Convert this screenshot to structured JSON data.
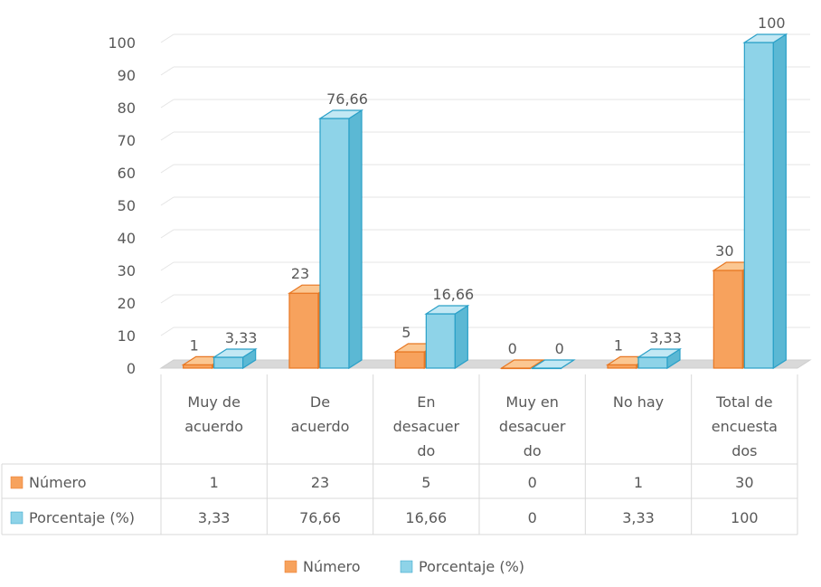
{
  "chart_data": {
    "type": "bar",
    "title": "",
    "categories": [
      [
        "Muy de",
        "acuerdo"
      ],
      [
        "De",
        "acuerdo"
      ],
      [
        "En",
        "desacuer",
        "do"
      ],
      [
        "Muy en",
        "desacuer",
        "do"
      ],
      [
        "No hay"
      ],
      [
        "Total de",
        "encuesta",
        "dos"
      ]
    ],
    "series": [
      {
        "name": "Número",
        "values": [
          1,
          23,
          5,
          0,
          1,
          30
        ],
        "labels": [
          "1",
          "23",
          "5",
          "0",
          "1",
          "30"
        ],
        "color": "#f7a25d",
        "color_side": "#e07b27",
        "color_top": "#fbc792",
        "stroke": "#e87722"
      },
      {
        "name": "Porcentaje (%)",
        "values": [
          3.33,
          76.66,
          16.66,
          0,
          3.33,
          100
        ],
        "labels": [
          "3,33",
          "76,66",
          "16,66",
          "0",
          "3,33",
          "100"
        ],
        "color": "#8ed3e8",
        "color_side": "#5bb8d4",
        "color_top": "#c2e8f4",
        "stroke": "#2aa0c8"
      }
    ],
    "ylim": [
      0,
      100
    ],
    "yticks": [
      0,
      10,
      20,
      30,
      40,
      50,
      60,
      70,
      80,
      90,
      100
    ],
    "grid": true,
    "data_table": true,
    "legend_position": "bottom"
  }
}
